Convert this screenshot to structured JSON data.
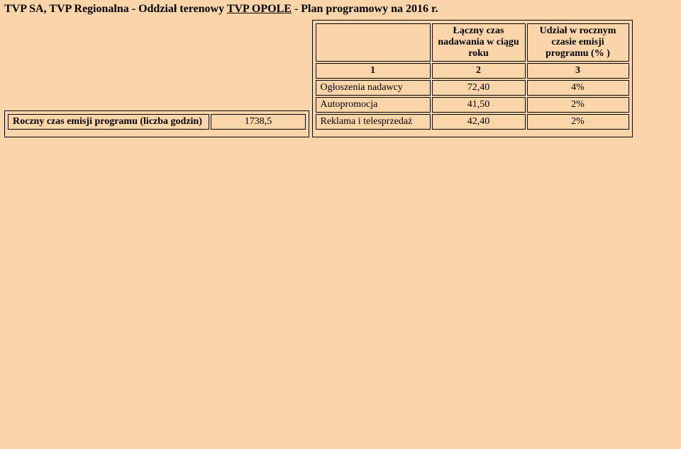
{
  "title_parts": {
    "pre": "TVP SA, TVP Regionalna - Oddział terenowy ",
    "underline": "TVP OPOLE",
    "post": " - Plan programowy na 2016 r."
  },
  "t1": {
    "label": "Roczny czas emisji programu (liczba godzin)",
    "value": "1738,5"
  },
  "t2": {
    "h1": "",
    "h2": "Łączny czas nadawania  w ciągu roku",
    "h3": "Udział w rocznym czasie emisji programu (% )",
    "numrow": {
      "c1": "1",
      "c2": "2",
      "c3": "3"
    },
    "rows": [
      {
        "label": "Ogłoszenia nadawcy",
        "val": "72,40",
        "pct": "4%"
      },
      {
        "label": "Autopromocja",
        "val": "41,50",
        "pct": "2%"
      },
      {
        "label": "Reklama i telesprzedaż",
        "val": "42,40",
        "pct": "2%"
      }
    ]
  }
}
